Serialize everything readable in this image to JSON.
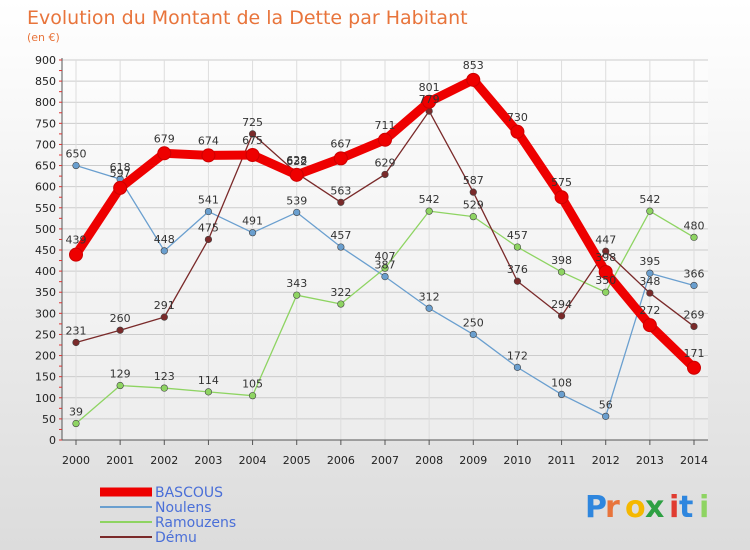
{
  "title": "Evolution du Montant de la Dette par Habitant",
  "subtitle": "(en €)",
  "brand": "Proxiti",
  "chart_data": {
    "type": "line",
    "x": [
      "2000",
      "2001",
      "2002",
      "2003",
      "2004",
      "2005",
      "2006",
      "2007",
      "2008",
      "2009",
      "2010",
      "2011",
      "2012",
      "2013",
      "2014"
    ],
    "ylim": [
      0,
      900
    ],
    "yticks": [
      0,
      50,
      100,
      150,
      200,
      250,
      300,
      350,
      400,
      450,
      500,
      550,
      600,
      650,
      700,
      750,
      800,
      850,
      900
    ],
    "grid": true,
    "legend_position": "bottom-left",
    "series": [
      {
        "name": "BASCOUS",
        "color": "#ee0000",
        "values": [
          439,
          597,
          679,
          674,
          675,
          628,
          667,
          711,
          801,
          853,
          730,
          575,
          398,
          272,
          171
        ]
      },
      {
        "name": "Noulens",
        "color": "#6a9fcf",
        "values": [
          650,
          618,
          448,
          541,
          491,
          539,
          457,
          387,
          312,
          250,
          172,
          108,
          56,
          395,
          366
        ]
      },
      {
        "name": "Ramouzens",
        "color": "#8ed462",
        "values": [
          39,
          129,
          123,
          114,
          105,
          343,
          322,
          407,
          542,
          529,
          457,
          398,
          350,
          542,
          480
        ]
      },
      {
        "name": "Dému",
        "color": "#7a2a2a",
        "values": [
          231,
          260,
          291,
          475,
          725,
          632,
          563,
          629,
          779,
          587,
          376,
          294,
          447,
          348,
          269
        ]
      }
    ]
  }
}
